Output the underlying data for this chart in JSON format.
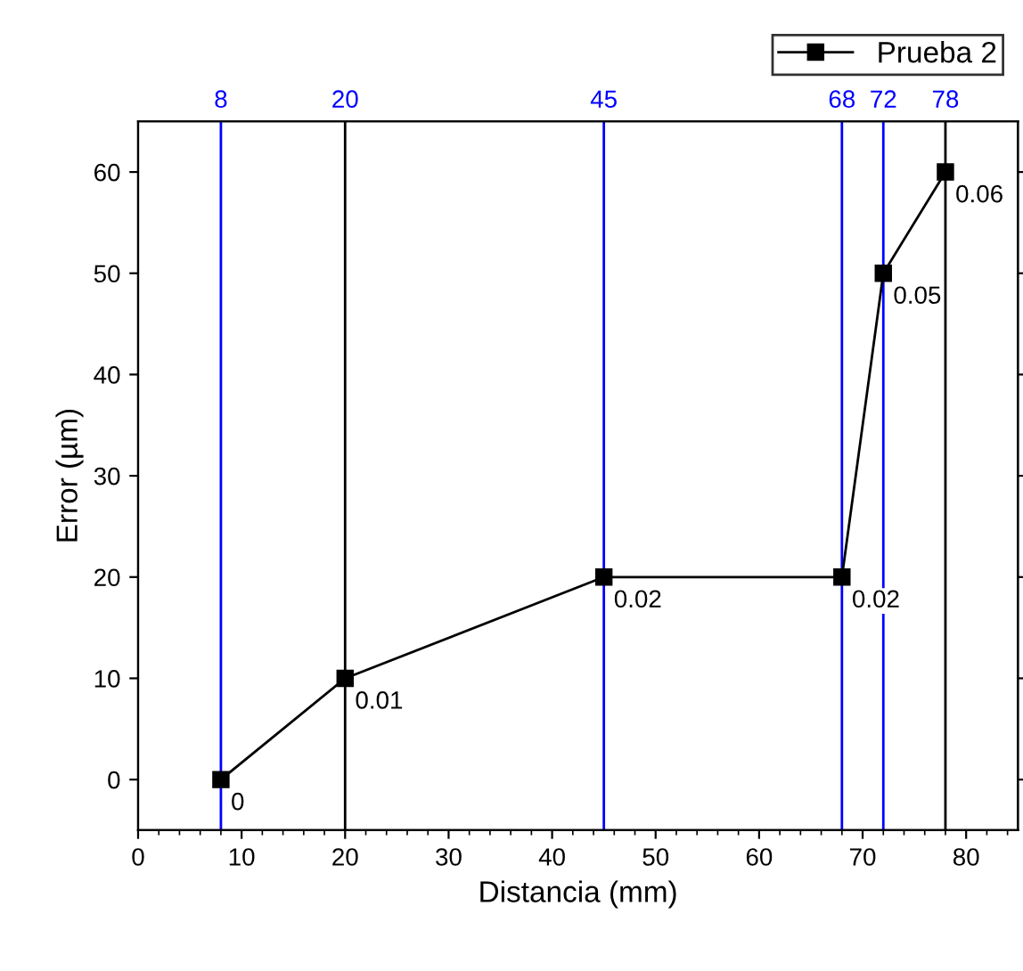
{
  "chart_data": {
    "type": "line",
    "xlabel": "Distancia (mm)",
    "ylabel": "Error (µm)",
    "x": [
      8,
      20,
      45,
      68,
      72,
      78
    ],
    "series": [
      {
        "name": "Prueba 2",
        "color": "#000000",
        "values": [
          0,
          10,
          20,
          20,
          50,
          60
        ]
      }
    ],
    "annotations": [
      {
        "text": "0",
        "x": 8,
        "y": 0
      },
      {
        "text": "0.01",
        "x": 20,
        "y": 10
      },
      {
        "text": "0.02",
        "x": 45,
        "y": 20
      },
      {
        "text": "0.02",
        "x": 68,
        "y": 20
      },
      {
        "text": "0.05",
        "x": 72,
        "y": 50
      },
      {
        "text": "0.06",
        "x": 78,
        "y": 60
      }
    ],
    "xlim": [
      0,
      85
    ],
    "xticks": [
      0,
      10,
      20,
      30,
      40,
      50,
      60,
      70,
      80
    ],
    "ylim": [
      -5,
      65
    ],
    "yticks": [
      0,
      10,
      20,
      30,
      40,
      50,
      60
    ],
    "x2lim": [
      0,
      85
    ],
    "x2ticks": [
      8,
      20,
      45,
      68,
      72,
      78
    ],
    "ref_lines": [
      {
        "axis": "x",
        "value": 8,
        "color": "#0000ff"
      },
      {
        "axis": "x",
        "value": 20,
        "color": "#000000"
      },
      {
        "axis": "x",
        "value": 45,
        "color": "#0000ff"
      },
      {
        "axis": "x",
        "value": 68,
        "color": "#0000ff"
      },
      {
        "axis": "x",
        "value": 72,
        "color": "#0000ff"
      },
      {
        "axis": "x",
        "value": 78,
        "color": "#000000"
      }
    ],
    "marker": "square",
    "line_style": "solid",
    "grid": false,
    "legend": "top right"
  }
}
